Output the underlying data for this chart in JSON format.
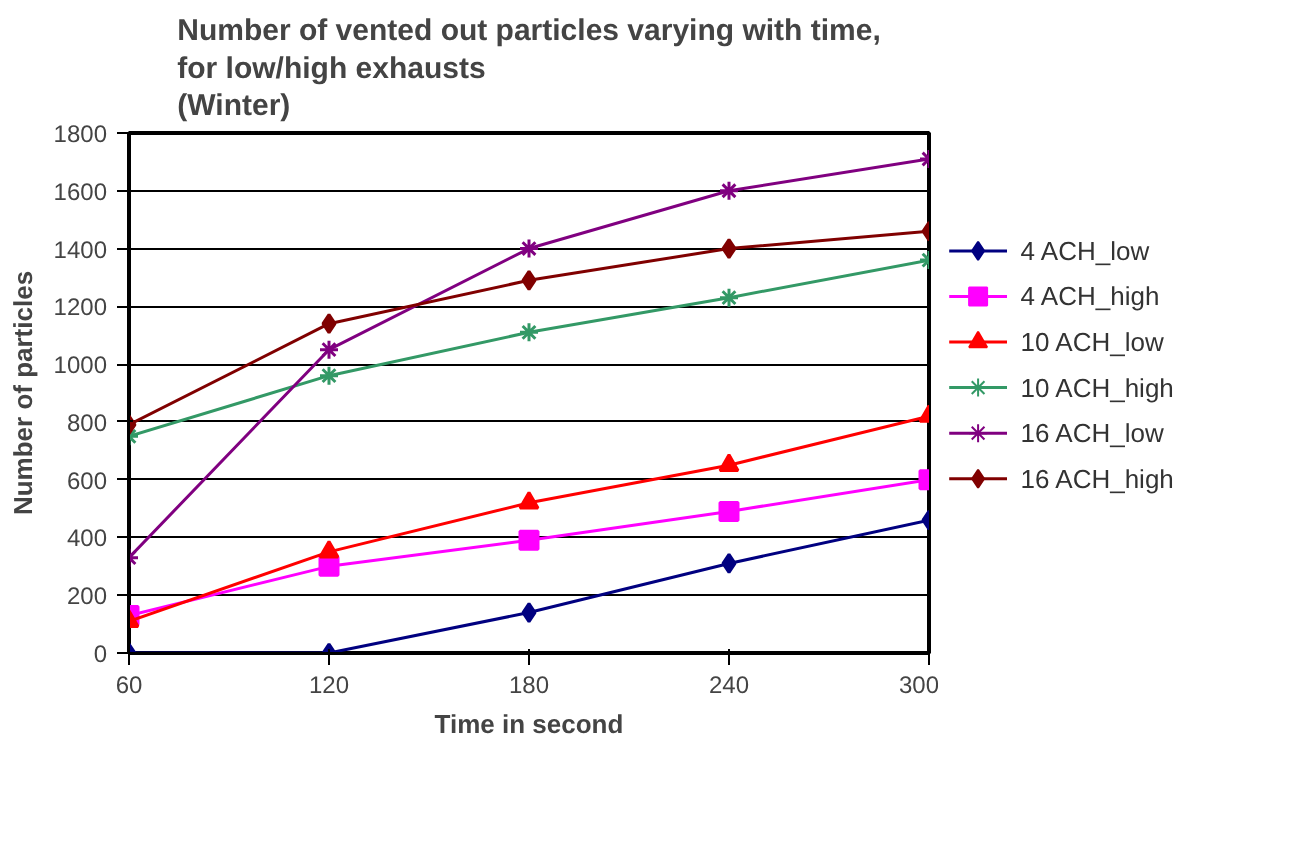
{
  "chart_data": {
    "type": "line",
    "title": "Number of vented out particles varying with time,\nfor low/high exhausts\n(Winter)",
    "xlabel": "Time in second",
    "ylabel": "Number of particles",
    "x": [
      60,
      120,
      180,
      240,
      300
    ],
    "xlim": [
      60,
      300
    ],
    "xticks": [
      60,
      120,
      180,
      240,
      300
    ],
    "ylim": [
      0,
      1800
    ],
    "yticks": [
      0,
      200,
      400,
      600,
      800,
      1000,
      1200,
      1400,
      1600,
      1800
    ],
    "grid": "y",
    "legend": "right",
    "series": [
      {
        "name": "4 ACH_low",
        "color": "#000080",
        "marker": "diamond",
        "values": [
          0,
          0,
          140,
          310,
          460
        ]
      },
      {
        "name": "4 ACH_high",
        "color": "#ff00ff",
        "marker": "square",
        "values": [
          130,
          300,
          390,
          490,
          600
        ]
      },
      {
        "name": "10 ACH_low",
        "color": "#ff0000",
        "marker": "triangle",
        "values": [
          110,
          350,
          520,
          650,
          820
        ]
      },
      {
        "name": "10 ACH_high",
        "color": "#339966",
        "marker": "cross",
        "values": [
          750,
          960,
          1110,
          1230,
          1360
        ]
      },
      {
        "name": "16 ACH_low",
        "color": "#800080",
        "marker": "cross",
        "values": [
          330,
          1050,
          1400,
          1600,
          1710
        ]
      },
      {
        "name": "16 ACH_high",
        "color": "#800000",
        "marker": "diamond",
        "values": [
          790,
          1140,
          1290,
          1400,
          1460
        ]
      }
    ]
  }
}
